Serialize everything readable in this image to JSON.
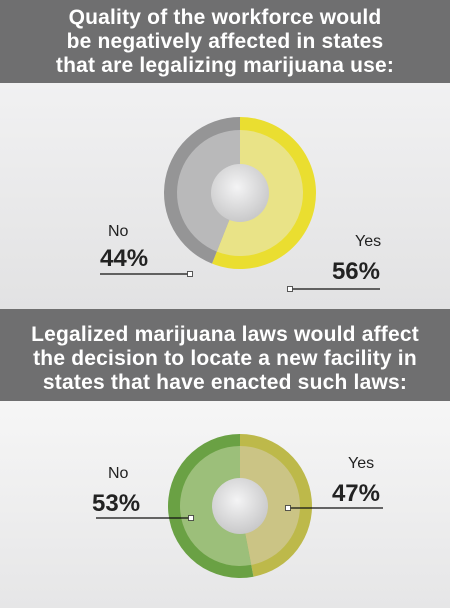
{
  "panels": [
    {
      "title_lines": [
        "Quality of the workforce would",
        "be negatively affected in states",
        "that are legalizing marijuana use:"
      ]
    },
    {
      "title_lines": [
        "Legalized marijuana laws would affect",
        "the decision to locate a new facility in",
        "states that have enacted such laws:"
      ]
    }
  ],
  "chart_data": [
    {
      "type": "pie",
      "title": "Quality of the workforce would be negatively affected in states that are legalizing marijuana use:",
      "categories": [
        "Yes",
        "No"
      ],
      "values": [
        56,
        44
      ],
      "labels": [
        "56%",
        "44%"
      ],
      "colors": {
        "Yes": {
          "ring": "#eade30",
          "fill": "#e9e387"
        },
        "No": {
          "ring": "#959596",
          "fill": "#b9b9ba"
        }
      }
    },
    {
      "type": "pie",
      "title": "Legalized marijuana laws would affect the decision to locate a new facility in states that have enacted such laws:",
      "categories": [
        "Yes",
        "No"
      ],
      "values": [
        47,
        53
      ],
      "labels": [
        "47%",
        "53%"
      ],
      "colors": {
        "Yes": {
          "ring": "#bdb94a",
          "fill": "#cbc485"
        },
        "No": {
          "ring": "#6aa144",
          "fill": "#9cbf7a"
        }
      }
    }
  ]
}
